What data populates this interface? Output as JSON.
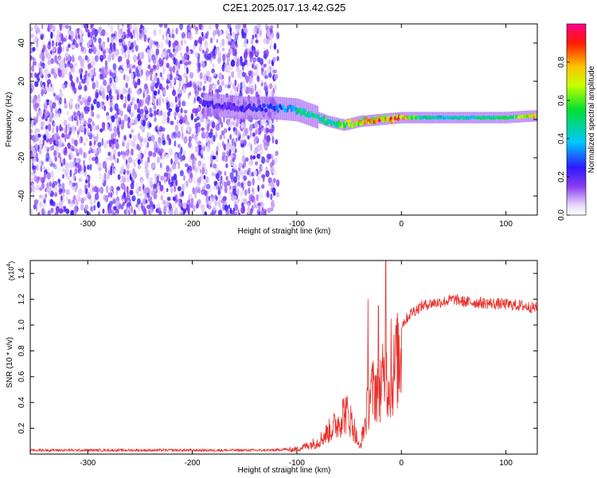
{
  "figure_title": "C2E1.2025.017.13.42.G25",
  "colors": {
    "snr_line": "#e8302a",
    "axis": "#000000",
    "background": "#ffffff",
    "purple_dark": "#5a12e6",
    "purple_light": "#cdb4f5"
  },
  "chart_data": [
    {
      "type": "heatmap",
      "title": "C2E1.2025.017.13.42.G25",
      "xlabel": "Height of straight line (km)",
      "ylabel": "Frequency (Hz)",
      "xlim": [
        -355,
        130
      ],
      "ylim": [
        -50,
        50
      ],
      "x_ticks": [
        -300,
        -200,
        -100,
        0,
        100
      ],
      "x_ticklabels": [
        "-300",
        "-200",
        "-100",
        "0",
        "100"
      ],
      "y_ticks": [
        -40,
        -20,
        0,
        20,
        40
      ],
      "y_ticklabels": [
        "-40",
        "-20",
        "0",
        "20",
        "40"
      ],
      "colorbar": {
        "label": "Normalized spectral amplitude",
        "range": [
          0,
          1
        ],
        "ticks": [
          0.0,
          0.2,
          0.4,
          0.6,
          0.8
        ],
        "ticklabels": [
          "0.0",
          "0.2",
          "0.4",
          "0.6",
          "0.8"
        ],
        "colormap": "rainbow (white-purple-blue-cyan-green-yellow-red-magenta)"
      },
      "features": {
        "broadband_noise_region_km": [
          -355,
          -118
        ],
        "noise_amplitude_range": [
          0.05,
          0.25
        ],
        "signal_ridge": [
          {
            "x": -190,
            "freq": 8,
            "amp": 0.2
          },
          {
            "x": -150,
            "freq": 6,
            "amp": 0.22
          },
          {
            "x": -120,
            "freq": 6,
            "amp": 0.3
          },
          {
            "x": -100,
            "freq": 5,
            "amp": 0.45
          },
          {
            "x": -85,
            "freq": 2,
            "amp": 0.5
          },
          {
            "x": -70,
            "freq": -1,
            "amp": 0.45
          },
          {
            "x": -55,
            "freq": -3,
            "amp": 0.6
          },
          {
            "x": -40,
            "freq": -1,
            "amp": 0.7
          },
          {
            "x": -20,
            "freq": 0,
            "amp": 0.8
          },
          {
            "x": 0,
            "freq": 1,
            "amp": 0.85
          },
          {
            "x": 20,
            "freq": 1,
            "amp": 0.45
          },
          {
            "x": 60,
            "freq": 1,
            "amp": 0.45
          },
          {
            "x": 100,
            "freq": 1,
            "amp": 0.5
          },
          {
            "x": 130,
            "freq": 2,
            "amp": 0.8
          }
        ]
      }
    },
    {
      "type": "line",
      "xlabel": "Height of straight line (km)",
      "ylabel": "SNR (10 * v/v)",
      "y_multiplier_label": "(x10",
      "y_multiplier_exponent": "4",
      "y_multiplier_close": ")",
      "xlim": [
        -355,
        130
      ],
      "ylim": [
        0,
        1.5
      ],
      "x_ticks": [
        -300,
        -200,
        -100,
        0,
        100
      ],
      "x_ticklabels": [
        "-300",
        "-200",
        "-100",
        "0",
        "100"
      ],
      "y_ticks": [
        0.2,
        0.4,
        0.6,
        0.8,
        1.0,
        1.2,
        1.4
      ],
      "y_ticklabels": [
        "0.2",
        "0.4",
        "0.6",
        "0.8",
        "1.0",
        "1.2",
        "1.4"
      ],
      "series": [
        {
          "envelope": {
            "x": [
              -355,
              -200,
              -120,
              -100,
              -80,
              -70,
              -60,
              -55,
              -50,
              -45,
              -40,
              -35,
              -30,
              -25,
              -20,
              -15,
              -10,
              -5,
              0,
              10,
              20,
              30,
              40,
              50,
              60,
              80,
              100,
              115,
              130
            ],
            "y": [
              0.03,
              0.03,
              0.03,
              0.05,
              0.12,
              0.22,
              0.32,
              0.42,
              0.38,
              0.25,
              0.05,
              0.3,
              0.6,
              0.65,
              0.7,
              0.75,
              0.7,
              0.9,
              1.0,
              1.1,
              1.15,
              1.17,
              1.18,
              1.2,
              1.18,
              1.17,
              1.16,
              1.15,
              1.13
            ]
          },
          "spikes": [
            {
              "x": -32,
              "y": 1.2
            },
            {
              "x": -22,
              "y": 1.15
            },
            {
              "x": -15,
              "y": 1.5
            },
            {
              "x": -10,
              "y": 1.05
            },
            {
              "x": -5,
              "y": 1.0
            }
          ]
        }
      ]
    }
  ]
}
